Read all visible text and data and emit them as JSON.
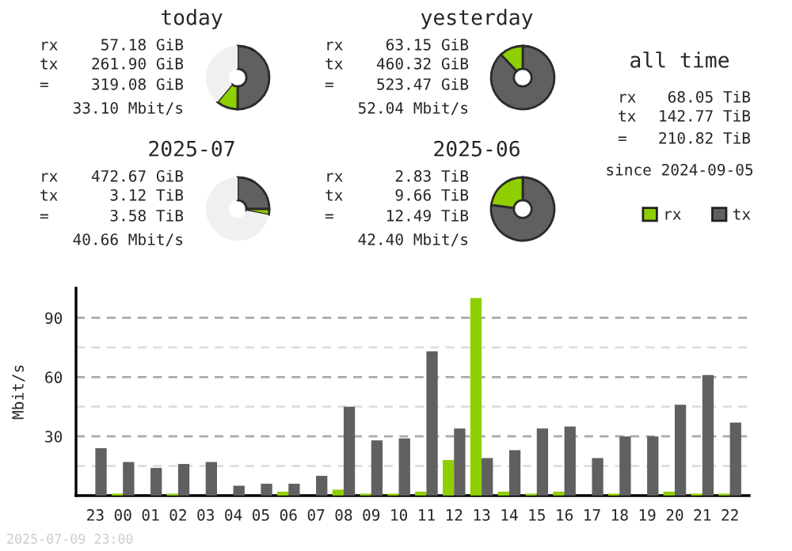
{
  "chart_data": [
    {
      "type": "donut",
      "title": "today",
      "categories": [
        null,
        null,
        null
      ],
      "values": [
        50,
        11,
        39
      ],
      "colors": [
        "#606060",
        "#8fce00",
        "#f0f0f0"
      ],
      "annotations": [
        "rx",
        "57.18 GiB",
        "tx",
        "261.90 GiB",
        "=",
        "319.08 GiB",
        "33.10 Mbit/s"
      ]
    },
    {
      "type": "donut",
      "title": "yesterday",
      "categories": [
        null,
        null
      ],
      "values": [
        88,
        12
      ],
      "colors": [
        "#606060",
        "#8fce00"
      ],
      "annotations": [
        "rx",
        "63.15 GiB",
        "tx",
        "460.32 GiB",
        "=",
        "523.47 GiB",
        "52.04 Mbit/s"
      ]
    },
    {
      "type": "other",
      "title": "all time",
      "annotations": [
        "rx",
        "68.05 TiB",
        "tx",
        "142.77 TiB",
        "=",
        "210.82 TiB",
        "since 2024-09-05"
      ]
    },
    {
      "type": "donut",
      "title": "2025-07",
      "categories": [
        null,
        null,
        null
      ],
      "values": [
        25,
        3,
        72
      ],
      "colors": [
        "#606060",
        "#8fce00",
        "#f0f0f0"
      ],
      "annotations": [
        "rx",
        "472.67 GiB",
        "tx",
        "3.12 TiB",
        "=",
        "3.58 TiB",
        "40.66 Mbit/s"
      ]
    },
    {
      "type": "donut",
      "title": "2025-06",
      "categories": [
        null,
        null
      ],
      "values": [
        77,
        23
      ],
      "colors": [
        "#606060",
        "#8fce00"
      ],
      "annotations": [
        "rx",
        "2.83 TiB",
        "tx",
        "9.66 TiB",
        "=",
        "12.49 TiB",
        "42.40 Mbit/s"
      ]
    },
    {
      "type": "bar",
      "ylabel": "Mbit/s",
      "categories": [
        "23",
        "00",
        "01",
        "02",
        "03",
        "04",
        "05",
        "06",
        "07",
        "08",
        "09",
        "10",
        "11",
        "12",
        "13",
        "14",
        "15",
        "16",
        "17",
        "18",
        "19",
        "20",
        "21",
        "22"
      ],
      "series": [
        {
          "name": "rx",
          "color": "#8fce00",
          "values": [
            0,
            1,
            0,
            1,
            0,
            0,
            0,
            2,
            0,
            3,
            1,
            1,
            2,
            18,
            100,
            2,
            1,
            2,
            0,
            1,
            0,
            2,
            1,
            1
          ]
        },
        {
          "name": "tx",
          "color": "#606060",
          "values": [
            24,
            17,
            14,
            16,
            17,
            5,
            6,
            6,
            10,
            45,
            28,
            29,
            73,
            34,
            19,
            23,
            34,
            35,
            19,
            30,
            30,
            46,
            61,
            37
          ]
        }
      ],
      "ylim": [
        0,
        105
      ],
      "yticks": [
        {
          "value": 15,
          "label": null
        },
        30,
        {
          "value": 45,
          "label": null
        },
        60,
        {
          "value": 75,
          "label": null
        },
        90
      ],
      "grid": "y",
      "legend": "top right",
      "annotations": [
        "2025-07-09 23:00"
      ]
    }
  ]
}
